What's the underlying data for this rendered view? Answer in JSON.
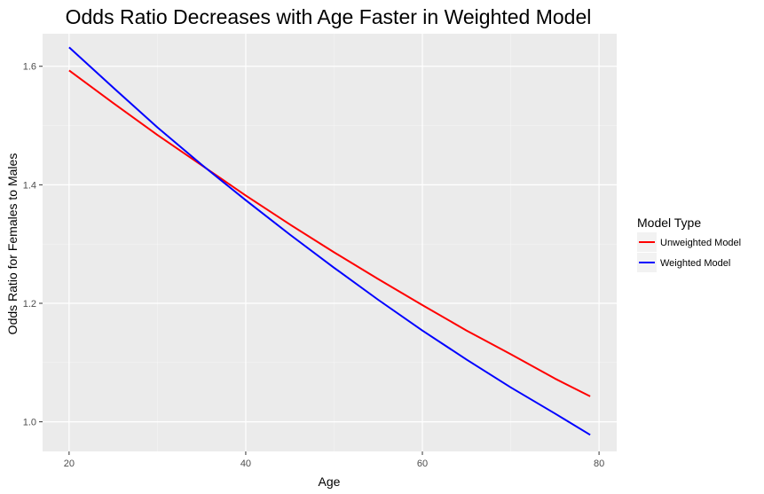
{
  "chart_data": {
    "type": "line",
    "title": "Odds Ratio Decreases with Age Faster in Weighted Model",
    "xlabel": "Age",
    "ylabel": "Odds Ratio for Females to Males",
    "xlim": [
      17,
      82
    ],
    "ylim": [
      0.95,
      1.655
    ],
    "x_ticks": [
      20,
      40,
      60,
      80
    ],
    "y_ticks": [
      1.0,
      1.2,
      1.4,
      1.6
    ],
    "x_tick_labels": [
      "20",
      "40",
      "60",
      "80"
    ],
    "y_tick_labels": [
      "1.0",
      "1.2",
      "1.4",
      "1.6"
    ],
    "grid": true,
    "legend": {
      "title": "Model Type",
      "position": "right",
      "entries": [
        "Unweighted Model",
        "Weighted Model"
      ]
    },
    "series": [
      {
        "name": "Unweighted Model",
        "color": "#ff0000",
        "x": [
          20,
          25,
          30,
          35,
          40,
          45,
          50,
          55,
          60,
          65,
          70,
          75,
          79
        ],
        "values": [
          1.593,
          1.538,
          1.484,
          1.433,
          1.382,
          1.333,
          1.286,
          1.241,
          1.197,
          1.154,
          1.114,
          1.073,
          1.043
        ]
      },
      {
        "name": "Weighted Model",
        "color": "#0000ff",
        "x": [
          20,
          25,
          30,
          35,
          40,
          45,
          50,
          55,
          60,
          65,
          70,
          75,
          79
        ],
        "values": [
          1.632,
          1.564,
          1.497,
          1.434,
          1.374,
          1.316,
          1.26,
          1.206,
          1.154,
          1.105,
          1.058,
          1.014,
          0.978
        ]
      }
    ]
  }
}
